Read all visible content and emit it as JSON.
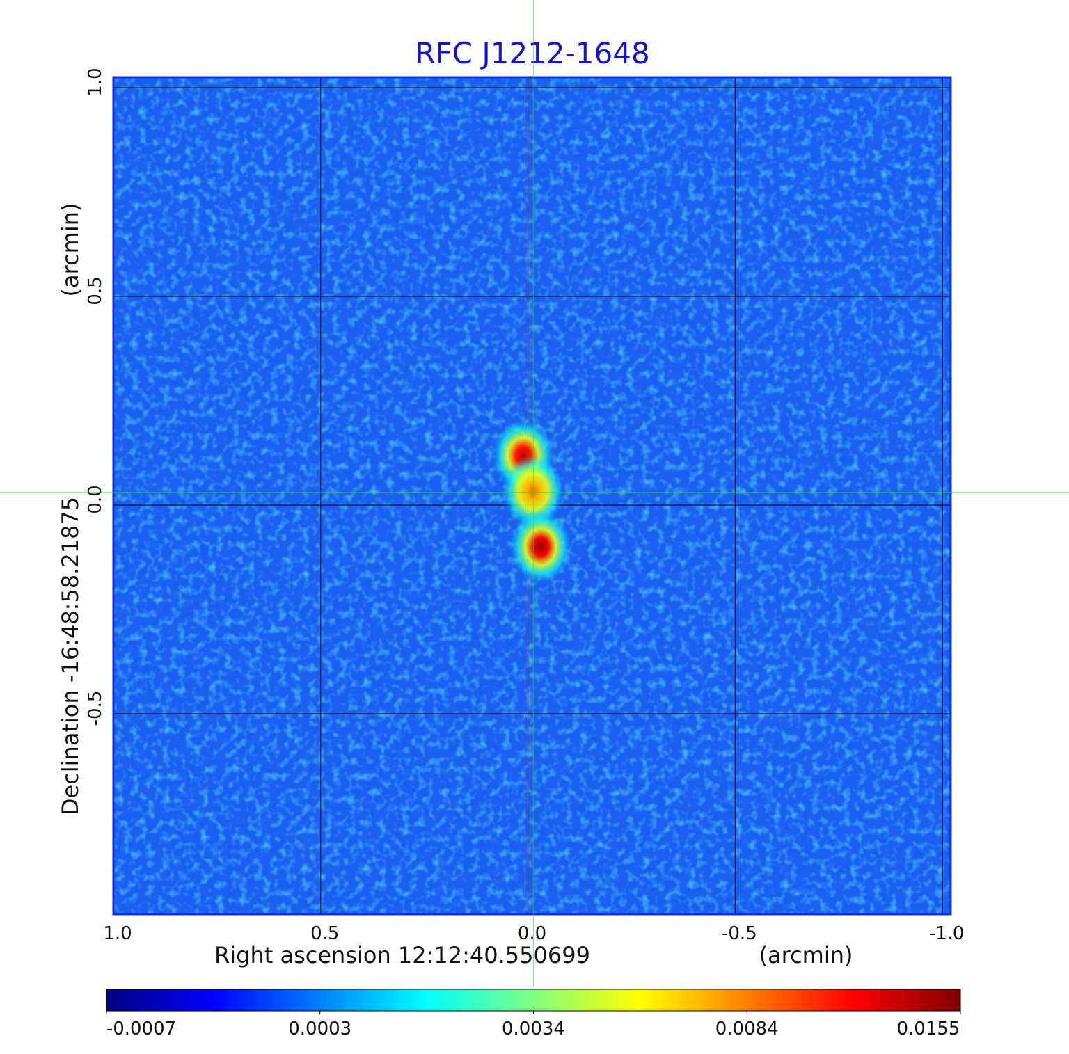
{
  "chart_data": {
    "type": "image",
    "title": "RFC J1212-1648",
    "x_label": "Right ascension  12:12:40.550699",
    "x_label_unit": "(arcmin)",
    "y_label": "Declination  -16:48:58.21875",
    "y_label_unit": "(arcmin)",
    "xlim": [
      1.0,
      -1.02
    ],
    "ylim": [
      -0.98,
      1.025
    ],
    "xticks": [
      {
        "value": 1,
        "label": "1.0"
      },
      0.5,
      {
        "value": 0,
        "label": "0.0"
      },
      -0.5,
      {
        "value": -1,
        "label": "-1.0"
      }
    ],
    "yticks": [
      {
        "value": 1,
        "label": "1.0"
      },
      0.5,
      {
        "value": 0,
        "label": "0.0"
      },
      -0.5
    ],
    "grid": true,
    "sources": {
      "x": [
        0.011,
        -0.0125,
        -0.031
      ],
      "y": [
        0.118,
        0.033,
        -0.1
      ],
      "values": [
        0.014,
        0.009,
        0.015
      ]
    },
    "colorbar": {
      "ticks": [
        -0.0007,
        0.0003,
        0.0034,
        0.0084,
        0.0155
      ],
      "colormap": [
        "#00007f",
        "#0000ff",
        "#0080ff",
        "#00ffff",
        "#80ff80",
        "#ffff00",
        "#ff8000",
        "#ff0000",
        "#7f0000"
      ]
    }
  }
}
